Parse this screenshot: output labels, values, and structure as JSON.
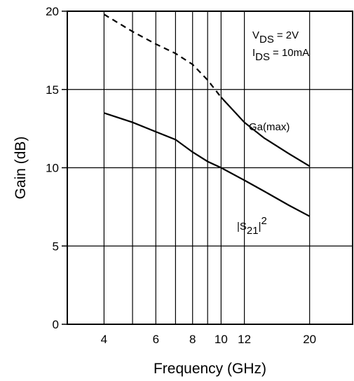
{
  "chart_data": {
    "type": "line",
    "xlabel": "Frequency (GHz)",
    "ylabel": "Gain (dB)",
    "x_scale": "log",
    "xlim": [
      3,
      28
    ],
    "ylim": [
      0,
      20
    ],
    "x_ticks": [
      4,
      6,
      8,
      10,
      12,
      20
    ],
    "x_gridlines": [
      4,
      5,
      6,
      7,
      8,
      9,
      10,
      12,
      20
    ],
    "y_ticks": [
      0,
      5,
      10,
      15,
      20
    ],
    "grid": true,
    "annotation_lines": [
      {
        "sub": "DS",
        "value": "= 2V",
        "main": "V"
      },
      {
        "sub": "DS",
        "value": "= 10mA",
        "main": "I"
      }
    ],
    "series": [
      {
        "name": "Ga(max)",
        "line_style": "dashed-then-solid",
        "x": [
          4,
          5,
          6,
          7,
          8,
          9,
          10,
          12,
          14,
          17,
          20
        ],
        "y": [
          19.8,
          18.7,
          17.9,
          17.3,
          16.6,
          15.6,
          14.5,
          12.9,
          11.9,
          10.9,
          10.1
        ],
        "dash_until_x": 10
      },
      {
        "name_main": "|S",
        "name_sub": "21",
        "name_tail": "|",
        "name_sup": "2",
        "line_style": "solid",
        "x": [
          4,
          5,
          6,
          7,
          8,
          9,
          10,
          12,
          14,
          17,
          20
        ],
        "y": [
          13.5,
          12.9,
          12.3,
          11.8,
          11.0,
          10.4,
          10.0,
          9.2,
          8.5,
          7.6,
          6.9
        ]
      }
    ]
  }
}
